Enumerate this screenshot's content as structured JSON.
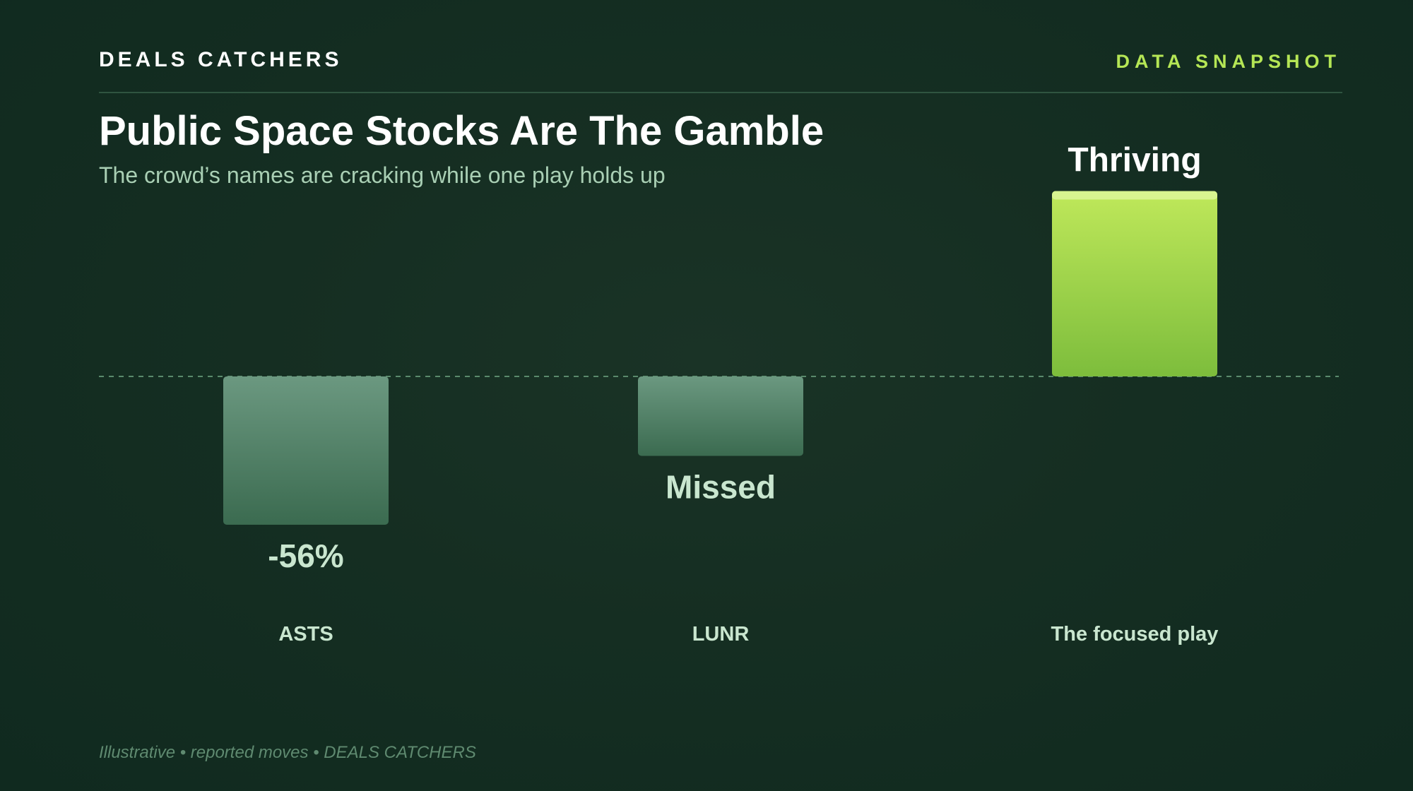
{
  "header": {
    "brand": "DEALS CATCHERS",
    "tag": "DATA SNAPSHOT"
  },
  "title": "Public Space Stocks Are The Gamble",
  "subtitle": "The crowd’s names are cracking while one play holds up",
  "footer": "Illustrative • reported moves • DEALS CATCHERS",
  "colors": {
    "background": "#132c21",
    "accent": "#b5e655",
    "negative_bar_top": "#6b9880",
    "negative_bar_bottom": "#3b6b50",
    "positive_bar_top": "#bfe85a",
    "positive_bar_bottom": "#7dbd3c",
    "label_text": "#c9e6cf"
  },
  "chart_data": {
    "type": "bar",
    "categories": [
      "ASTS",
      "LUNR",
      "The focused play"
    ],
    "values": [
      -56,
      -30,
      70
    ],
    "data_labels": [
      "-56%",
      "Missed",
      "Thriving"
    ],
    "baseline": 0,
    "ylim": [
      -70,
      80
    ],
    "grid": false,
    "legend": "none",
    "title": "Public Space Stocks Are The Gamble",
    "xlabel": "",
    "ylabel": ""
  }
}
